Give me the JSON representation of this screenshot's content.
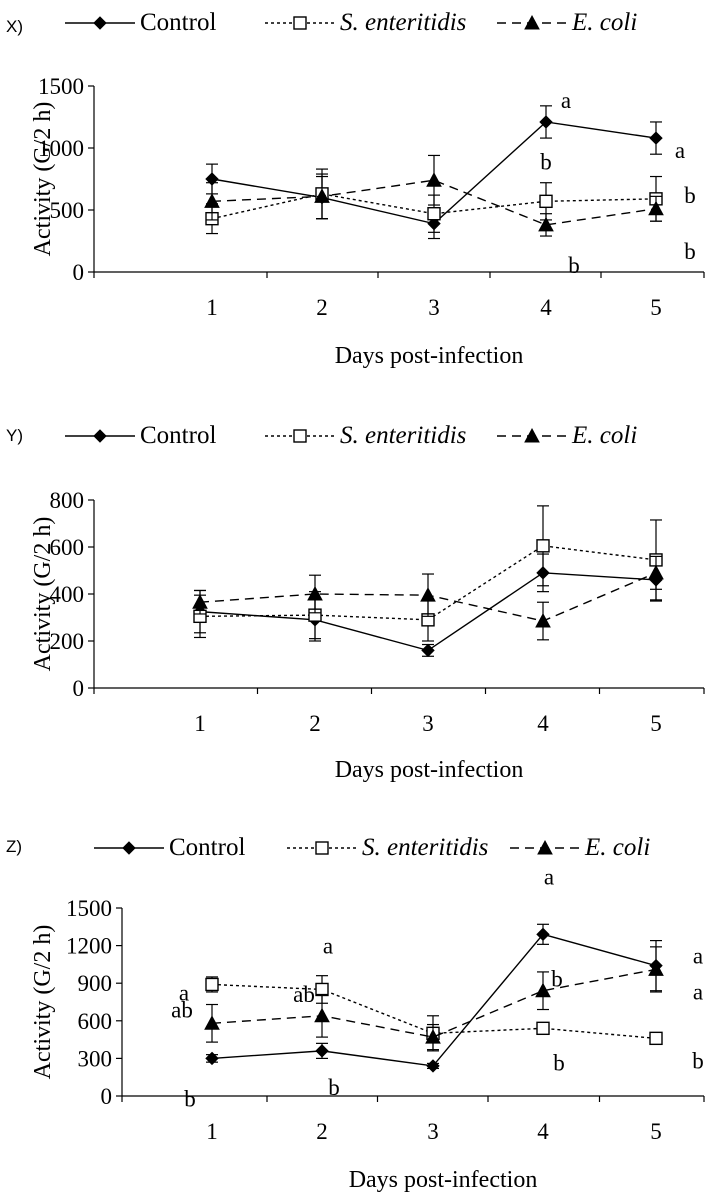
{
  "figure": {
    "legend_labels": [
      "Control",
      "S. enteritidis",
      "E. coli"
    ]
  },
  "chart_data": [
    {
      "panel": "X)",
      "type": "line",
      "xlabel": "Days post-infection",
      "ylabel": "Activity  (G/2 h)",
      "x": [
        1,
        2,
        3,
        4,
        5
      ],
      "ylim": [
        0,
        1500
      ],
      "yticks": [
        0,
        500,
        1000,
        1500
      ],
      "legend": [
        "Control",
        "S. enteritidis",
        "E. coli"
      ],
      "series": [
        {
          "name": "Control",
          "marker": "diamond",
          "line": "solid",
          "values": [
            750,
            600,
            390,
            1210,
            1080
          ],
          "errors": [
            120,
            170,
            120,
            130,
            130
          ]
        },
        {
          "name": "S. enteritidis",
          "marker": "open-square",
          "line": "dotted",
          "values": [
            430,
            630,
            470,
            570,
            590
          ],
          "errors": [
            120,
            200,
            150,
            150,
            180
          ]
        },
        {
          "name": "E. coli",
          "marker": "triangle",
          "line": "dashed",
          "values": [
            570,
            610,
            740,
            380,
            510
          ],
          "errors": [
            150,
            180,
            200,
            90,
            100
          ]
        }
      ],
      "annotations": [
        {
          "text": "a",
          "x": 4,
          "series": "Control"
        },
        {
          "text": "a",
          "x": 5,
          "series": "Control"
        },
        {
          "text": "b",
          "x": 4,
          "series": "S. enteritidis"
        },
        {
          "text": "b",
          "x": 5,
          "series": "S. enteritidis"
        },
        {
          "text": "b",
          "x": 4,
          "series": "E. coli"
        },
        {
          "text": "b",
          "x": 5,
          "series": "E. coli"
        }
      ]
    },
    {
      "panel": "Y)",
      "type": "line",
      "xlabel": "Days post-infection",
      "ylabel": "Activity  (G/2 h)",
      "x": [
        1,
        2,
        3,
        4,
        5
      ],
      "ylim": [
        0,
        800
      ],
      "yticks": [
        0,
        200,
        400,
        600,
        800
      ],
      "legend": [
        "Control",
        "S. enteritidis",
        "E. coli"
      ],
      "series": [
        {
          "name": "Control",
          "marker": "diamond",
          "line": "solid",
          "values": [
            325,
            290,
            160,
            490,
            460
          ],
          "errors": [
            90,
            90,
            25,
            80,
            90
          ]
        },
        {
          "name": "S. enteritidis",
          "marker": "open-square",
          "line": "dotted",
          "values": [
            305,
            310,
            290,
            605,
            545
          ],
          "errors": [
            90,
            100,
            90,
            170,
            170
          ]
        },
        {
          "name": "E. coli",
          "marker": "triangle",
          "line": "dashed",
          "values": [
            365,
            400,
            395,
            285,
            490
          ],
          "errors": [
            50,
            80,
            90,
            80,
            70
          ]
        }
      ],
      "annotations": []
    },
    {
      "panel": "Z)",
      "type": "line",
      "xlabel": "Days post-infection",
      "ylabel": "Activity  (G/2 h)",
      "x": [
        1,
        2,
        3,
        4,
        5
      ],
      "ylim": [
        0,
        1500
      ],
      "yticks": [
        0,
        300,
        600,
        900,
        1200,
        1500
      ],
      "legend": [
        "Control",
        "S. enteritidis",
        "E. coli"
      ],
      "series": [
        {
          "name": "Control",
          "marker": "diamond",
          "line": "solid",
          "values": [
            300,
            360,
            240,
            1290,
            1040
          ],
          "errors": [
            30,
            60,
            20,
            80,
            200
          ]
        },
        {
          "name": "S. enteritidis",
          "marker": "open-square",
          "line": "dotted",
          "values": [
            890,
            850,
            500,
            540,
            460
          ],
          "errors": [
            60,
            110,
            140,
            30,
            40
          ]
        },
        {
          "name": "E. coli",
          "marker": "triangle",
          "line": "dashed",
          "values": [
            580,
            640,
            470,
            840,
            1010
          ],
          "errors": [
            150,
            170,
            100,
            150,
            180
          ]
        }
      ],
      "annotations": [
        {
          "text": "a",
          "x": 1,
          "series": "S. enteritidis"
        },
        {
          "text": "ab",
          "x": 1,
          "series": "E. coli"
        },
        {
          "text": "b",
          "x": 1,
          "series": "Control"
        },
        {
          "text": "a",
          "x": 2,
          "series": "S. enteritidis"
        },
        {
          "text": "ab",
          "x": 2,
          "series": "E. coli"
        },
        {
          "text": "b",
          "x": 2,
          "series": "Control"
        },
        {
          "text": "a",
          "x": 4,
          "series": "Control"
        },
        {
          "text": "b",
          "x": 4,
          "series": "E. coli"
        },
        {
          "text": "b",
          "x": 4,
          "series": "S. enteritidis"
        },
        {
          "text": "a",
          "x": 5,
          "series": "Control"
        },
        {
          "text": "a",
          "x": 5,
          "series": "E. coli"
        },
        {
          "text": "b",
          "x": 5,
          "series": "S. enteritidis"
        }
      ]
    }
  ]
}
